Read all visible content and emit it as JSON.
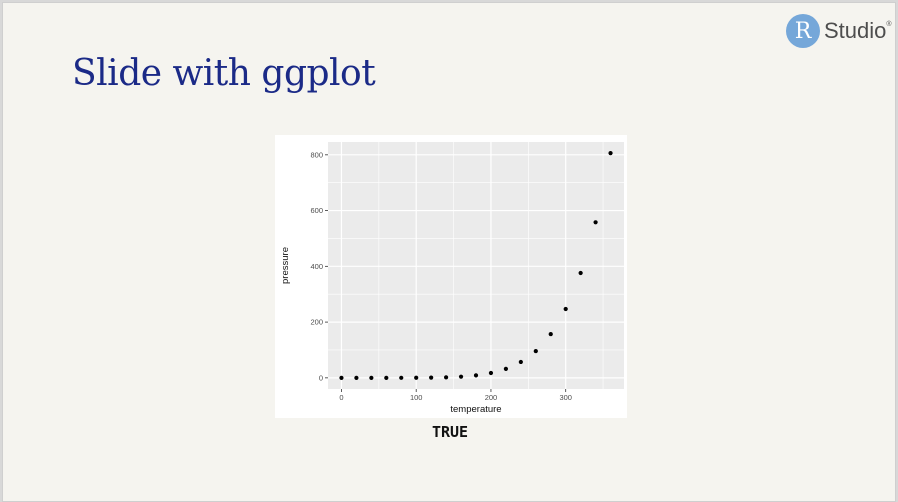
{
  "slide": {
    "title": "Slide with ggplot",
    "result_text": "TRUE"
  },
  "logo": {
    "letter": "R",
    "word": "Studio",
    "mark": "®"
  },
  "colors": {
    "title": "#1b2a87",
    "panel": "#ebebeb",
    "grid": "#ffffff",
    "point": "#000000",
    "logo_circle": "#75a7d9"
  },
  "chart_data": {
    "type": "scatter",
    "title": "",
    "xlabel": "temperature",
    "ylabel": "pressure",
    "xlim": [
      -18,
      378
    ],
    "ylim": [
      -40,
      846
    ],
    "xticks": [
      0,
      100,
      200,
      300
    ],
    "yticks": [
      0,
      200,
      400,
      600,
      800
    ],
    "grid": true,
    "x": [
      0,
      20,
      40,
      60,
      80,
      100,
      120,
      140,
      160,
      180,
      200,
      220,
      240,
      260,
      280,
      300,
      320,
      340,
      360
    ],
    "y": [
      0.0002,
      0.0012,
      0.006,
      0.03,
      0.09,
      0.27,
      0.75,
      1.85,
      4.2,
      8.8,
      17.3,
      32.1,
      57,
      96,
      157,
      247,
      376,
      558,
      806
    ]
  }
}
